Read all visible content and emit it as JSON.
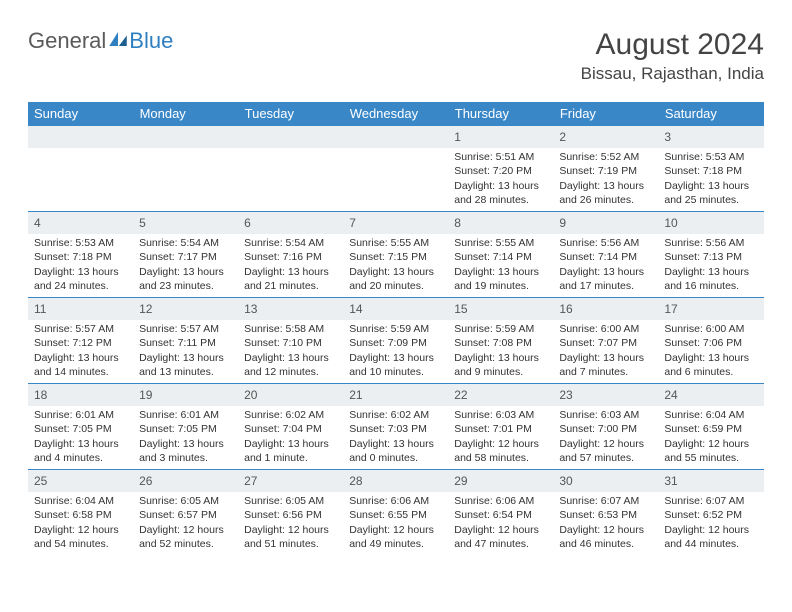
{
  "brand": {
    "part1": "General",
    "part2": "Blue",
    "text_color": "#5a5a5a",
    "blue_color": "#2f7fc1"
  },
  "header": {
    "month_title": "August 2024",
    "location": "Bissau, Rajasthan, India"
  },
  "theme": {
    "header_bg": "#3a87c8",
    "header_fg": "#ffffff",
    "cell_border": "#3a87c8",
    "daynum_bg": "#eceff1",
    "body_fontsize": 10.5,
    "title_fontsize": 30,
    "location_fontsize": 17,
    "th_fontsize": 13
  },
  "week_header": [
    "Sunday",
    "Monday",
    "Tuesday",
    "Wednesday",
    "Thursday",
    "Friday",
    "Saturday"
  ],
  "weeks": [
    [
      {
        "empty": true
      },
      {
        "empty": true
      },
      {
        "empty": true
      },
      {
        "empty": true
      },
      {
        "day": "1",
        "sunrise": "Sunrise: 5:51 AM",
        "sunset": "Sunset: 7:20 PM",
        "daylight": "Daylight: 13 hours and 28 minutes."
      },
      {
        "day": "2",
        "sunrise": "Sunrise: 5:52 AM",
        "sunset": "Sunset: 7:19 PM",
        "daylight": "Daylight: 13 hours and 26 minutes."
      },
      {
        "day": "3",
        "sunrise": "Sunrise: 5:53 AM",
        "sunset": "Sunset: 7:18 PM",
        "daylight": "Daylight: 13 hours and 25 minutes."
      }
    ],
    [
      {
        "day": "4",
        "sunrise": "Sunrise: 5:53 AM",
        "sunset": "Sunset: 7:18 PM",
        "daylight": "Daylight: 13 hours and 24 minutes."
      },
      {
        "day": "5",
        "sunrise": "Sunrise: 5:54 AM",
        "sunset": "Sunset: 7:17 PM",
        "daylight": "Daylight: 13 hours and 23 minutes."
      },
      {
        "day": "6",
        "sunrise": "Sunrise: 5:54 AM",
        "sunset": "Sunset: 7:16 PM",
        "daylight": "Daylight: 13 hours and 21 minutes."
      },
      {
        "day": "7",
        "sunrise": "Sunrise: 5:55 AM",
        "sunset": "Sunset: 7:15 PM",
        "daylight": "Daylight: 13 hours and 20 minutes."
      },
      {
        "day": "8",
        "sunrise": "Sunrise: 5:55 AM",
        "sunset": "Sunset: 7:14 PM",
        "daylight": "Daylight: 13 hours and 19 minutes."
      },
      {
        "day": "9",
        "sunrise": "Sunrise: 5:56 AM",
        "sunset": "Sunset: 7:14 PM",
        "daylight": "Daylight: 13 hours and 17 minutes."
      },
      {
        "day": "10",
        "sunrise": "Sunrise: 5:56 AM",
        "sunset": "Sunset: 7:13 PM",
        "daylight": "Daylight: 13 hours and 16 minutes."
      }
    ],
    [
      {
        "day": "11",
        "sunrise": "Sunrise: 5:57 AM",
        "sunset": "Sunset: 7:12 PM",
        "daylight": "Daylight: 13 hours and 14 minutes."
      },
      {
        "day": "12",
        "sunrise": "Sunrise: 5:57 AM",
        "sunset": "Sunset: 7:11 PM",
        "daylight": "Daylight: 13 hours and 13 minutes."
      },
      {
        "day": "13",
        "sunrise": "Sunrise: 5:58 AM",
        "sunset": "Sunset: 7:10 PM",
        "daylight": "Daylight: 13 hours and 12 minutes."
      },
      {
        "day": "14",
        "sunrise": "Sunrise: 5:59 AM",
        "sunset": "Sunset: 7:09 PM",
        "daylight": "Daylight: 13 hours and 10 minutes."
      },
      {
        "day": "15",
        "sunrise": "Sunrise: 5:59 AM",
        "sunset": "Sunset: 7:08 PM",
        "daylight": "Daylight: 13 hours and 9 minutes."
      },
      {
        "day": "16",
        "sunrise": "Sunrise: 6:00 AM",
        "sunset": "Sunset: 7:07 PM",
        "daylight": "Daylight: 13 hours and 7 minutes."
      },
      {
        "day": "17",
        "sunrise": "Sunrise: 6:00 AM",
        "sunset": "Sunset: 7:06 PM",
        "daylight": "Daylight: 13 hours and 6 minutes."
      }
    ],
    [
      {
        "day": "18",
        "sunrise": "Sunrise: 6:01 AM",
        "sunset": "Sunset: 7:05 PM",
        "daylight": "Daylight: 13 hours and 4 minutes."
      },
      {
        "day": "19",
        "sunrise": "Sunrise: 6:01 AM",
        "sunset": "Sunset: 7:05 PM",
        "daylight": "Daylight: 13 hours and 3 minutes."
      },
      {
        "day": "20",
        "sunrise": "Sunrise: 6:02 AM",
        "sunset": "Sunset: 7:04 PM",
        "daylight": "Daylight: 13 hours and 1 minute."
      },
      {
        "day": "21",
        "sunrise": "Sunrise: 6:02 AM",
        "sunset": "Sunset: 7:03 PM",
        "daylight": "Daylight: 13 hours and 0 minutes."
      },
      {
        "day": "22",
        "sunrise": "Sunrise: 6:03 AM",
        "sunset": "Sunset: 7:01 PM",
        "daylight": "Daylight: 12 hours and 58 minutes."
      },
      {
        "day": "23",
        "sunrise": "Sunrise: 6:03 AM",
        "sunset": "Sunset: 7:00 PM",
        "daylight": "Daylight: 12 hours and 57 minutes."
      },
      {
        "day": "24",
        "sunrise": "Sunrise: 6:04 AM",
        "sunset": "Sunset: 6:59 PM",
        "daylight": "Daylight: 12 hours and 55 minutes."
      }
    ],
    [
      {
        "day": "25",
        "sunrise": "Sunrise: 6:04 AM",
        "sunset": "Sunset: 6:58 PM",
        "daylight": "Daylight: 12 hours and 54 minutes."
      },
      {
        "day": "26",
        "sunrise": "Sunrise: 6:05 AM",
        "sunset": "Sunset: 6:57 PM",
        "daylight": "Daylight: 12 hours and 52 minutes."
      },
      {
        "day": "27",
        "sunrise": "Sunrise: 6:05 AM",
        "sunset": "Sunset: 6:56 PM",
        "daylight": "Daylight: 12 hours and 51 minutes."
      },
      {
        "day": "28",
        "sunrise": "Sunrise: 6:06 AM",
        "sunset": "Sunset: 6:55 PM",
        "daylight": "Daylight: 12 hours and 49 minutes."
      },
      {
        "day": "29",
        "sunrise": "Sunrise: 6:06 AM",
        "sunset": "Sunset: 6:54 PM",
        "daylight": "Daylight: 12 hours and 47 minutes."
      },
      {
        "day": "30",
        "sunrise": "Sunrise: 6:07 AM",
        "sunset": "Sunset: 6:53 PM",
        "daylight": "Daylight: 12 hours and 46 minutes."
      },
      {
        "day": "31",
        "sunrise": "Sunrise: 6:07 AM",
        "sunset": "Sunset: 6:52 PM",
        "daylight": "Daylight: 12 hours and 44 minutes."
      }
    ]
  ]
}
